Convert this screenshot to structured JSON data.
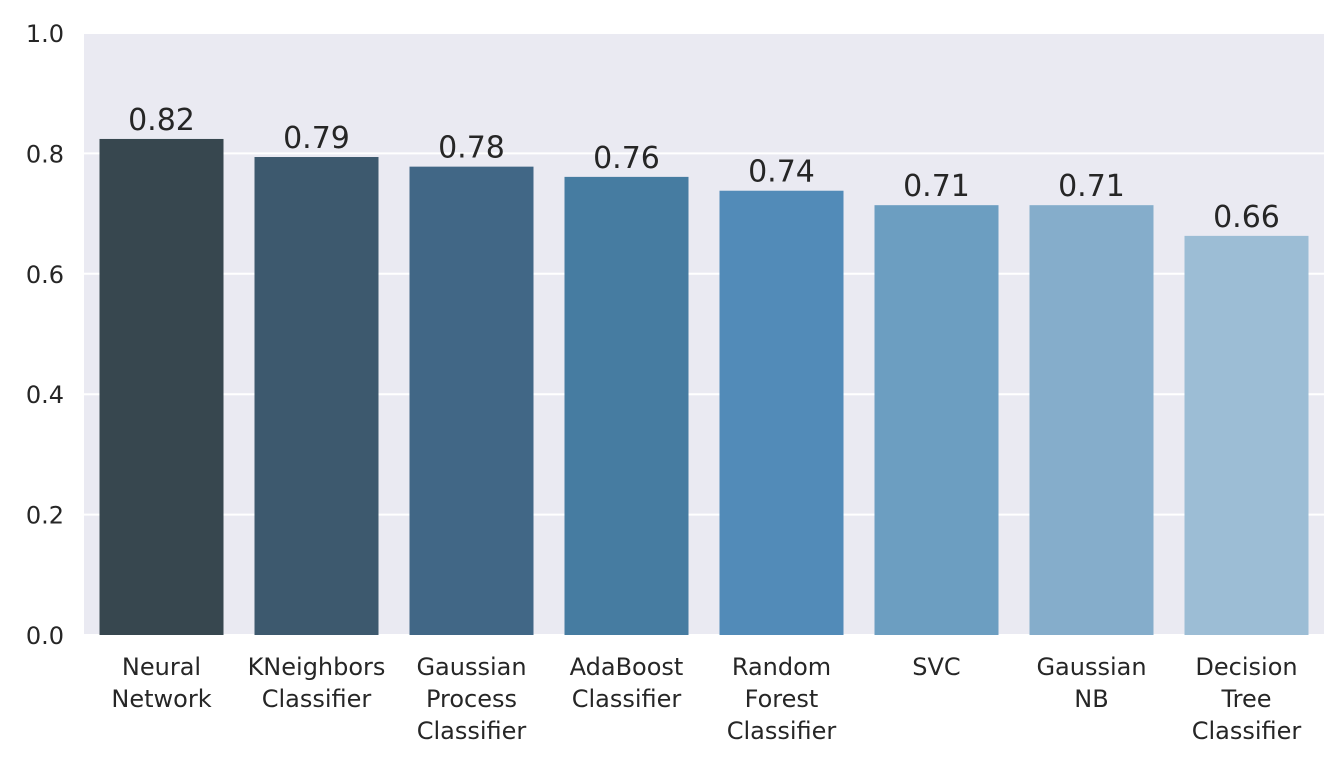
{
  "chart_data": {
    "type": "bar",
    "categories": [
      [
        "Neural",
        "Network"
      ],
      [
        "KNeighbors",
        "Classifier"
      ],
      [
        "Gaussian",
        "Process",
        "Classifier"
      ],
      [
        "AdaBoost",
        "Classifier"
      ],
      [
        "Random",
        "Forest",
        "Classifier"
      ],
      [
        "SVC"
      ],
      [
        "Gaussian",
        "NB"
      ],
      [
        "Decision",
        "Tree",
        "Classifier"
      ]
    ],
    "values": [
      0.824,
      0.794,
      0.778,
      0.761,
      0.738,
      0.714,
      0.714,
      0.663
    ],
    "value_labels": [
      "0.82",
      "0.79",
      "0.78",
      "0.76",
      "0.74",
      "0.71",
      "0.71",
      "0.66"
    ],
    "colors": [
      "#37474f",
      "#3d596e",
      "#416786",
      "#467ca1",
      "#528bb8",
      "#6c9ec1",
      "#85adcb",
      "#9cbdd5"
    ],
    "ylim": [
      0,
      1.0
    ],
    "yticks": [
      "0.0",
      "0.2",
      "0.4",
      "0.6",
      "0.8",
      "1.0"
    ],
    "ytick_values": [
      0,
      0.2,
      0.4,
      0.6,
      0.8,
      1.0
    ],
    "title": "",
    "xlabel": "",
    "ylabel": "",
    "grid": true,
    "background": "#eaeaf2",
    "grid_color": "#ffffff"
  }
}
